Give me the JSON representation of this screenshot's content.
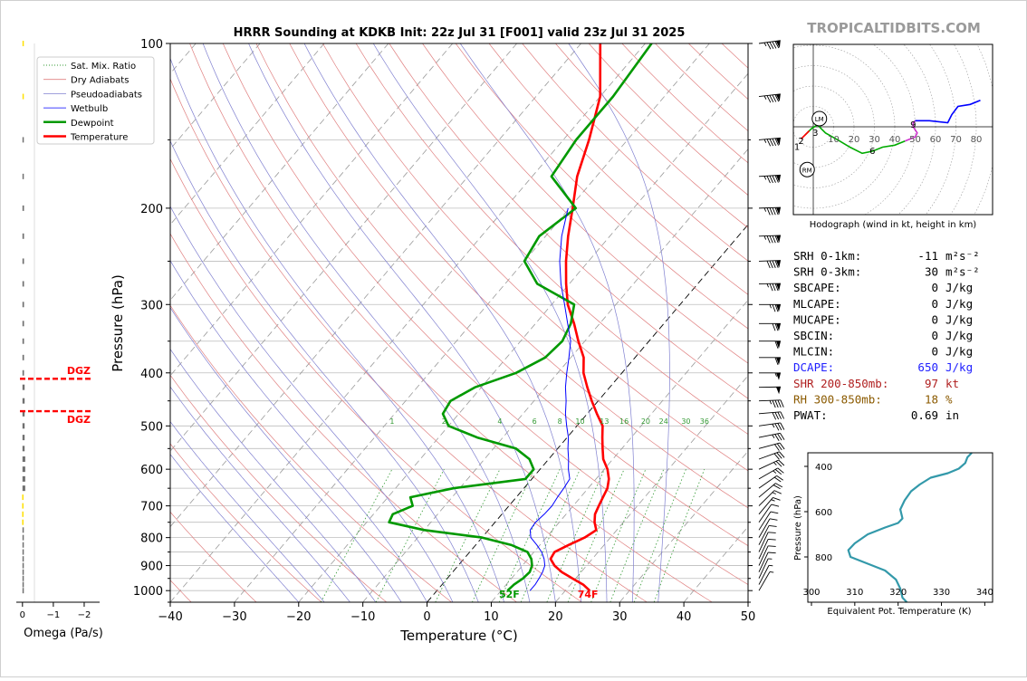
{
  "title": "HRRR Sounding at KDKB Init: 22z Jul 31 [F001] valid 23z Jul 31 2025",
  "watermark": "TROPICALTIDBITS.COM",
  "colors": {
    "temperature": "#ff0000",
    "dewpoint": "#009900",
    "wetbulb": "#0000ff",
    "dry_adiabat": "#e08080",
    "moist_adiabat": "#8080d0",
    "mix_ratio": "#339933",
    "dgz": "#ff0000",
    "dcape": "#2020ff",
    "shr": "#b02020",
    "rh": "#8b5a00",
    "theta": "#3399aa",
    "hodo_0_3": "#00aa00",
    "hodo_3_6": "#00aa00",
    "hodo_6_9": "#cc33cc",
    "hodo_9_up": "#0000ff",
    "hodo_low": "#ff0000"
  },
  "legend": [
    {
      "label": "Sat. Mix. Ratio",
      "style": "dotted",
      "color": "#339933"
    },
    {
      "label": "Dry Adiabats",
      "style": "solid",
      "color": "#e08080"
    },
    {
      "label": "Pseudoadiabats",
      "style": "solid",
      "color": "#8080d0"
    },
    {
      "label": "Wetbulb",
      "style": "solid",
      "color": "#0000ff"
    },
    {
      "label": "Dewpoint",
      "style": "bold",
      "color": "#009900"
    },
    {
      "label": "Temperature",
      "style": "bold",
      "color": "#ff0000"
    }
  ],
  "chart_data": [
    {
      "type": "line",
      "title": "HRRR Sounding at KDKB Init: 22z Jul 31 [F001] valid 23z Jul 31 2025",
      "xlabel": "Temperature (°C)",
      "ylabel": "Pressure (hPa)",
      "xlim": [
        -40,
        50
      ],
      "ylim": [
        1050,
        100
      ],
      "yscale": "log",
      "skew": true,
      "xticks": [
        -40,
        -30,
        -20,
        -10,
        0,
        10,
        20,
        30,
        40,
        50
      ],
      "yticks": [
        100,
        200,
        300,
        400,
        500,
        600,
        700,
        800,
        900,
        1000
      ],
      "surface_labels": {
        "temperature": "74F",
        "dewpoint": "52F"
      },
      "mixing_ratio_labels": [
        "1",
        "2",
        "4",
        "6",
        "8",
        "10",
        "13",
        "16",
        "20",
        "24",
        "30",
        "36"
      ],
      "series": [
        {
          "name": "Temperature",
          "points": [
            [
              23.8,
              1000
            ],
            [
              22,
              975
            ],
            [
              19.5,
              950
            ],
            [
              17,
              925
            ],
            [
              15,
              900
            ],
            [
              13.5,
              875
            ],
            [
              13.2,
              850
            ],
            [
              14.5,
              825
            ],
            [
              16,
              800
            ],
            [
              16.8,
              775
            ],
            [
              15.5,
              750
            ],
            [
              14.5,
              725
            ],
            [
              14,
              700
            ],
            [
              13.5,
              675
            ],
            [
              13,
              650
            ],
            [
              12,
              625
            ],
            [
              10.5,
              600
            ],
            [
              8.5,
              575
            ],
            [
              7,
              550
            ],
            [
              5.5,
              525
            ],
            [
              4,
              500
            ],
            [
              1.5,
              475
            ],
            [
              -1,
              450
            ],
            [
              -3.5,
              425
            ],
            [
              -6,
              400
            ],
            [
              -8,
              375
            ],
            [
              -11,
              350
            ],
            [
              -14,
              325
            ],
            [
              -17.5,
              300
            ],
            [
              -20.5,
              275
            ],
            [
              -23.5,
              250
            ],
            [
              -26.5,
              225
            ],
            [
              -29.5,
              200
            ],
            [
              -33,
              175
            ],
            [
              -36,
              150
            ],
            [
              -40,
              125
            ],
            [
              -47,
              100
            ]
          ]
        },
        {
          "name": "Dewpoint",
          "points": [
            [
              11,
              1000
            ],
            [
              11.2,
              975
            ],
            [
              11.8,
              950
            ],
            [
              12,
              925
            ],
            [
              11.5,
              900
            ],
            [
              10.5,
              875
            ],
            [
              9,
              850
            ],
            [
              5.5,
              825
            ],
            [
              0,
              800
            ],
            [
              -10,
              775
            ],
            [
              -16.5,
              750
            ],
            [
              -17,
              725
            ],
            [
              -15,
              700
            ],
            [
              -16.5,
              675
            ],
            [
              -11,
              650
            ],
            [
              -1,
              625
            ],
            [
              -1,
              600
            ],
            [
              -3,
              575
            ],
            [
              -6.5,
              550
            ],
            [
              -14,
              525
            ],
            [
              -20,
              500
            ],
            [
              -22.5,
              475
            ],
            [
              -23,
              450
            ],
            [
              -21,
              425
            ],
            [
              -16.5,
              400
            ],
            [
              -14,
              375
            ],
            [
              -13.5,
              350
            ],
            [
              -14.5,
              325
            ],
            [
              -16.5,
              300
            ],
            [
              -25,
              275
            ],
            [
              -30,
              250
            ],
            [
              -31,
              225
            ],
            [
              -29,
              200
            ],
            [
              -37,
              175
            ],
            [
              -38,
              150
            ],
            [
              -38,
              125
            ],
            [
              -39,
              100
            ]
          ]
        },
        {
          "name": "Wetbulb",
          "points": [
            [
              14.5,
              1000
            ],
            [
              14.5,
              975
            ],
            [
              14.3,
              950
            ],
            [
              14,
              925
            ],
            [
              13.5,
              900
            ],
            [
              12.5,
              875
            ],
            [
              11.2,
              850
            ],
            [
              9.5,
              825
            ],
            [
              7.6,
              800
            ],
            [
              6.5,
              775
            ],
            [
              6.3,
              750
            ],
            [
              6.6,
              725
            ],
            [
              6.7,
              700
            ],
            [
              6.4,
              675
            ],
            [
              6.2,
              650
            ],
            [
              5.9,
              625
            ],
            [
              4.4,
              600
            ],
            [
              3.1,
              575
            ],
            [
              1.6,
              550
            ],
            [
              0.2,
              525
            ],
            [
              -1.6,
              500
            ],
            [
              -3.4,
              475
            ],
            [
              -5,
              450
            ],
            [
              -6.9,
              425
            ],
            [
              -8.6,
              400
            ],
            [
              -10.3,
              375
            ],
            [
              -12.2,
              350
            ],
            [
              -15,
              325
            ],
            [
              -18,
              300
            ],
            [
              -21.3,
              275
            ],
            [
              -24.5,
              250
            ],
            [
              -27.5,
              225
            ],
            [
              -30.2,
              200
            ]
          ]
        }
      ],
      "dgz_labels": [
        "DGZ",
        "DGZ"
      ],
      "dgz_pressures": [
        410,
        470
      ]
    },
    {
      "type": "line",
      "title": "Hodograph (wind in kt, height in km)",
      "xticks": [
        10,
        20,
        30,
        40,
        50,
        60,
        70,
        80
      ],
      "markers": [
        "LM",
        "RM"
      ],
      "height_labels": [
        "1",
        "2",
        "3",
        "6",
        "9"
      ],
      "series": [
        {
          "name": "0-3 km",
          "points": [
            [
              -4,
              -4
            ],
            [
              -1,
              -1
            ],
            [
              2,
              1
            ],
            [
              6,
              -3
            ],
            [
              13,
              -7
            ],
            [
              18,
              -10
            ],
            [
              24,
              -13
            ],
            [
              29,
              -12
            ]
          ]
        },
        {
          "name": "3-6 km",
          "points": [
            [
              29,
              -12
            ],
            [
              34,
              -10
            ],
            [
              40,
              -9
            ],
            [
              45,
              -7
            ]
          ]
        },
        {
          "name": "6-9 km",
          "points": [
            [
              45,
              -7
            ],
            [
              50,
              -5
            ],
            [
              51,
              -3
            ],
            [
              49,
              0
            ],
            [
              49,
              2
            ],
            [
              50,
              3
            ]
          ]
        },
        {
          "name": "9+ km",
          "points": [
            [
              50,
              3
            ],
            [
              57,
              3
            ],
            [
              66,
              2
            ],
            [
              68,
              6
            ],
            [
              71,
              10
            ],
            [
              77,
              11
            ],
            [
              82,
              13
            ]
          ]
        }
      ]
    },
    {
      "type": "line",
      "xlabel": "Equivalent Pot. Temperature (K)",
      "ylabel": "Pressure (hPa)",
      "xlim": [
        300,
        342
      ],
      "ylim": [
        1000,
        340
      ],
      "xticks": [
        300,
        310,
        320,
        330,
        340
      ],
      "yticks": [
        400,
        600,
        800
      ],
      "series": [
        {
          "name": "Equivalent Pot. Temperature",
          "points": [
            [
              322,
              1000
            ],
            [
              321,
              980
            ],
            [
              320.5,
              940
            ],
            [
              319.5,
              900
            ],
            [
              317,
              860
            ],
            [
              313,
              830
            ],
            [
              309,
              800
            ],
            [
              308.5,
              770
            ],
            [
              310,
              740
            ],
            [
              313,
              700
            ],
            [
              317,
              670
            ],
            [
              320,
              650
            ],
            [
              321,
              630
            ],
            [
              320.5,
              590
            ],
            [
              321.5,
              550
            ],
            [
              323,
              510
            ],
            [
              325,
              480
            ],
            [
              327.5,
              450
            ],
            [
              331.5,
              430
            ],
            [
              334,
              410
            ],
            [
              335.5,
              385
            ],
            [
              336,
              360
            ],
            [
              337,
              340
            ]
          ]
        }
      ]
    },
    {
      "type": "bar",
      "xlabel": "Omega (Pa/s)",
      "xticks": [
        "0",
        "−1",
        "−2"
      ],
      "xlim": [
        0.2,
        -2.5
      ]
    }
  ],
  "stats": [
    {
      "label": "SRH 0-1km:",
      "value": "-11",
      "unit": "m²s⁻²",
      "color": "#000000"
    },
    {
      "label": "SRH 0-3km:",
      "value": "30",
      "unit": "m²s⁻²",
      "color": "#000000"
    },
    {
      "label": "SBCAPE:",
      "value": "0",
      "unit": "J/kg",
      "color": "#000000"
    },
    {
      "label": "MLCAPE:",
      "value": "0",
      "unit": "J/kg",
      "color": "#000000"
    },
    {
      "label": "MUCAPE:",
      "value": "0",
      "unit": "J/kg",
      "color": "#000000"
    },
    {
      "label": "SBCIN:",
      "value": "0",
      "unit": "J/kg",
      "color": "#000000"
    },
    {
      "label": "MLCIN:",
      "value": "0",
      "unit": "J/kg",
      "color": "#000000"
    },
    {
      "label": "DCAPE:",
      "value": "650",
      "unit": "J/kg",
      "color": "#2020ff"
    },
    {
      "label": "SHR 200-850mb:",
      "value": "97",
      "unit": "kt",
      "color": "#b02020"
    },
    {
      "label": "RH 300-850mb:",
      "value": "18",
      "unit": "%",
      "color": "#8b5a00"
    },
    {
      "label": "PWAT:",
      "value": "0.69",
      "unit": "in",
      "color": "#000000"
    }
  ]
}
